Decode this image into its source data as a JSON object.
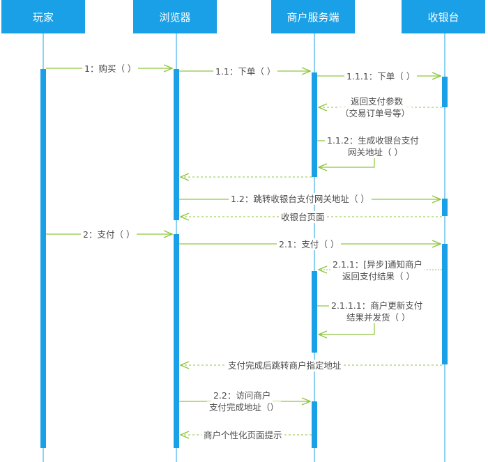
{
  "participants": [
    {
      "id": "player",
      "label": "玩家"
    },
    {
      "id": "browser",
      "label": "浏览器"
    },
    {
      "id": "merchant",
      "label": "商户服务端"
    },
    {
      "id": "cashier",
      "label": "收银台"
    }
  ],
  "messages": {
    "m1": "1：购买（ ）",
    "m11": "1.1：下单（ ）",
    "m111": "1.1.1：下单（ ）",
    "r111a": "返回支付参数",
    "r111b": "（交易订单号等）",
    "m112a": "1.1.2：生成收银台支付",
    "m112b": "网关地址（ ）",
    "m12": "1.2：跳转收银台支付网关地址（ ）",
    "r12": "收银台页面",
    "m2": "2：支付（ ）",
    "m21": "2.1：支付（ ）",
    "m211a": "2.1.1：[异步]通知商户",
    "m211b": "返回支付结果（ ）",
    "m2111a": "2.1.1.1：商户更新支付",
    "m2111b": "结果并发货（ ）",
    "r21": "支付完成后跳转商户指定地址",
    "m22a": "2.2：访问商户",
    "m22b": "支付完成地址（）",
    "r22": "商户个性化页面提示"
  },
  "colors": {
    "header": "#1aa0e6",
    "activation": "#1aa0e6",
    "arrow": "#8dc63f",
    "lifeline": "#1aa0e6"
  }
}
